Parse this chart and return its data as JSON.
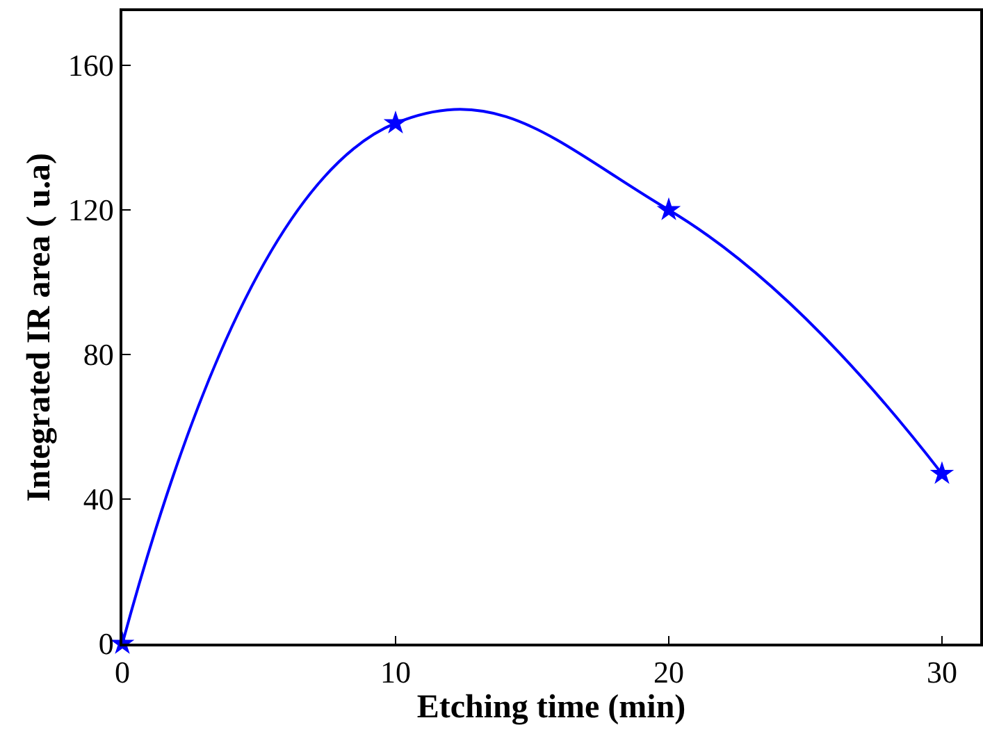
{
  "chart_data": {
    "type": "line",
    "xlabel": "Etching time (min)",
    "ylabel": "Integrated IR area ( u.a)",
    "x": [
      0,
      10,
      20,
      30
    ],
    "series": [
      {
        "color": "#0000ff",
        "values": [
          0,
          144,
          120,
          47
        ]
      }
    ],
    "xlim": [
      0,
      31.4
    ],
    "xticks": [
      0,
      10,
      20,
      30
    ],
    "ylim": [
      0,
      175
    ],
    "yticks": [
      0,
      40,
      80,
      120,
      160
    ],
    "grid": false,
    "legend": false,
    "marker": "star",
    "line_style": "solid"
  }
}
